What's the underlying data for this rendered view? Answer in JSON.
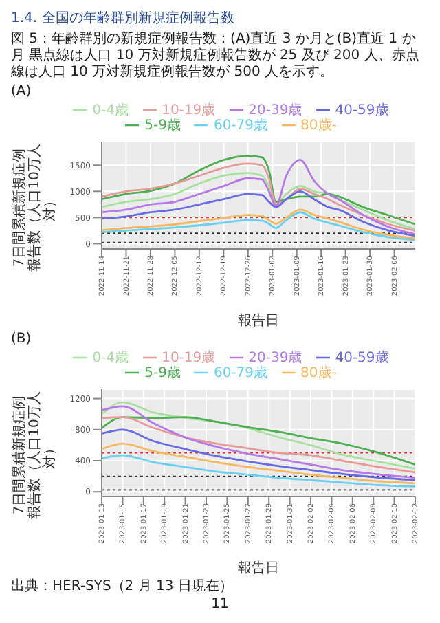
{
  "chart_data": [
    {
      "type": "line",
      "title": "(A)",
      "annotations": [
        "1.4. 全国の年齢群別新規症例報告数",
        "図 5：年齢群別の新規症例報告数：(A)直近 3 か月と(B)直近 1 か月 黒点線は人口 10 万対新規症例報告数が 25 及び 200 人、赤点線は人口 10 万対新規症例報告数が 500 人を示す。"
      ],
      "xlabel": "報告日",
      "ylabel": "7日間累積新規症例報告数（人口10万人対）",
      "legend": "top",
      "grid": true,
      "marker": "none",
      "line_style": "solid",
      "x": [
        "2022-11-14",
        "2022-11-21",
        "2022-11-28",
        "2022-12-05",
        "2022-12-12",
        "2022-12-19",
        "2022-12-26",
        "2022-12-30",
        "2023-01-01",
        "2023-01-03",
        "2023-01-06",
        "2023-01-10",
        "2023-01-14",
        "2023-01-18",
        "2023-01-21",
        "2023-01-28",
        "2023-02-04",
        "2023-02-12"
      ],
      "xlim": [
        "2022-11-14",
        "2023-02-12"
      ],
      "xticks": [
        "2022-11-14",
        "2022-11-21",
        "2022-11-28",
        "2022-12-05",
        "2022-12-12",
        "2022-12-19",
        "2022-12-26",
        "2023-01-02",
        "2023-01-09",
        "2023-01-16",
        "2023-01-23",
        "2023-01-30",
        "2023-02-06"
      ],
      "ylim": [
        -100,
        1950
      ],
      "yticks": [
        0,
        500,
        1000,
        1500
      ],
      "ref_lines": [
        {
          "axis": "y",
          "value": 25,
          "color": "#333333",
          "line_style": "dotted"
        },
        {
          "axis": "y",
          "value": 200,
          "color": "#333333",
          "line_style": "dotted"
        },
        {
          "axis": "y",
          "value": 500,
          "color": "#e03030",
          "line_style": "dotted"
        }
      ],
      "series": [
        {
          "name": "0-4歳",
          "color": "#a8e0a0",
          "values": [
            700,
            800,
            850,
            950,
            1150,
            1300,
            1350,
            1300,
            1100,
            750,
            950,
            1100,
            1000,
            950,
            850,
            650,
            450,
            280
          ]
        },
        {
          "name": "5-9歳",
          "color": "#4caf50",
          "values": [
            850,
            950,
            1010,
            1150,
            1400,
            1600,
            1680,
            1650,
            1400,
            800,
            850,
            900,
            900,
            950,
            900,
            700,
            550,
            370
          ]
        },
        {
          "name": "10-19歳",
          "color": "#e89a9a",
          "values": [
            900,
            1000,
            1050,
            1150,
            1300,
            1450,
            1530,
            1500,
            1250,
            750,
            850,
            1050,
            950,
            850,
            750,
            550,
            380,
            250
          ]
        },
        {
          "name": "20-39歳",
          "color": "#b57ae8",
          "values": [
            600,
            650,
            750,
            800,
            950,
            1100,
            1250,
            1230,
            1000,
            720,
            1300,
            1600,
            1200,
            950,
            850,
            550,
            330,
            180
          ]
        },
        {
          "name": "40-59歳",
          "color": "#6a6ae6",
          "values": [
            480,
            520,
            600,
            650,
            750,
            850,
            950,
            930,
            800,
            700,
            850,
            1000,
            850,
            700,
            650,
            420,
            260,
            150
          ]
        },
        {
          "name": "60-79歳",
          "color": "#6ad0f0",
          "values": [
            220,
            250,
            280,
            310,
            350,
            400,
            450,
            440,
            380,
            300,
            450,
            600,
            480,
            400,
            350,
            220,
            130,
            70
          ]
        },
        {
          "name": "80歳-",
          "color": "#f5b860",
          "values": [
            260,
            300,
            330,
            370,
            430,
            490,
            550,
            530,
            450,
            380,
            500,
            650,
            550,
            480,
            420,
            270,
            170,
            100
          ]
        }
      ]
    },
    {
      "type": "line",
      "title": "(B)",
      "annotations": [
        "出典：HER-SYS（2 月 13 日現在）",
        "11"
      ],
      "xlabel": "報告日",
      "ylabel": "7日間累積新規症例報告数（人口10万人対）",
      "legend": "top",
      "grid": true,
      "marker": "none",
      "line_style": "solid",
      "x": [
        "2023-01-13",
        "2023-01-15",
        "2023-01-18",
        "2023-01-21",
        "2023-01-24",
        "2023-01-27",
        "2023-01-30",
        "2023-02-02",
        "2023-02-05",
        "2023-02-08",
        "2023-02-12"
      ],
      "xlim": [
        "2023-01-13",
        "2023-02-12"
      ],
      "xticks": [
        "2023-01-13",
        "2023-01-15",
        "2023-01-17",
        "2023-01-19",
        "2023-01-21",
        "2023-01-23",
        "2023-01-25",
        "2023-01-27",
        "2023-01-29",
        "2023-01-31",
        "2023-02-02",
        "2023-02-04",
        "2023-02-06",
        "2023-02-08",
        "2023-02-10",
        "2023-02-12"
      ],
      "ylim": [
        -60,
        1320
      ],
      "yticks": [
        0,
        400,
        800,
        1200
      ],
      "ref_lines": [
        {
          "axis": "y",
          "value": 25,
          "color": "#333333",
          "line_style": "dotted"
        },
        {
          "axis": "y",
          "value": 200,
          "color": "#333333",
          "line_style": "dotted"
        },
        {
          "axis": "y",
          "value": 500,
          "color": "#e03030",
          "line_style": "dotted"
        }
      ],
      "series": [
        {
          "name": "0-4歳",
          "color": "#a8e0a0",
          "values": [
            1000,
            1150,
            1020,
            950,
            900,
            820,
            700,
            600,
            480,
            400,
            300
          ]
        },
        {
          "name": "5-9歳",
          "color": "#4caf50",
          "values": [
            820,
            960,
            950,
            960,
            900,
            830,
            770,
            690,
            620,
            520,
            350
          ]
        },
        {
          "name": "10-19歳",
          "color": "#e89a9a",
          "values": [
            950,
            960,
            820,
            700,
            620,
            560,
            500,
            470,
            400,
            330,
            250
          ]
        },
        {
          "name": "20-39歳",
          "color": "#b57ae8",
          "values": [
            1050,
            1100,
            880,
            700,
            580,
            490,
            420,
            350,
            280,
            230,
            180
          ]
        },
        {
          "name": "40-59歳",
          "color": "#6a6ae6",
          "values": [
            750,
            800,
            650,
            550,
            460,
            390,
            330,
            280,
            230,
            190,
            150
          ]
        },
        {
          "name": "60-79歳",
          "color": "#6ad0f0",
          "values": [
            430,
            470,
            380,
            320,
            260,
            220,
            180,
            150,
            120,
            90,
            70
          ]
        },
        {
          "name": "80歳-",
          "color": "#f5b860",
          "values": [
            550,
            620,
            520,
            450,
            380,
            320,
            270,
            220,
            180,
            140,
            110
          ]
        }
      ]
    }
  ]
}
